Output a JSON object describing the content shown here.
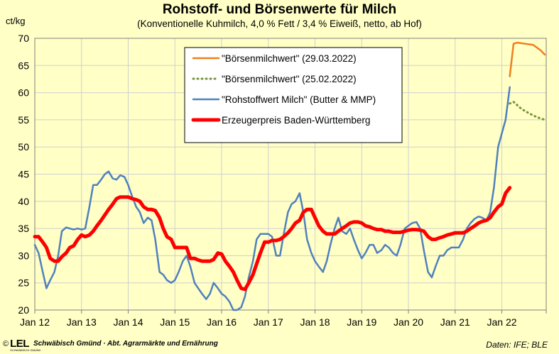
{
  "header": {
    "title": "Rohstoff- und Börsenwerte für Milch",
    "subtitle": "(Konventionelle Kuhmilch, 4,0 % Fett / 3,4 % Eiweiß, netto, ab Hof)",
    "unit": "ct/kg"
  },
  "footer": {
    "copyright": "©",
    "logo": "LEL",
    "logo_sub": "SCHWÄBISCH GMÜND",
    "org": "Schwäbisch Gmünd · Abt. Agrarmärkte und Ernährung",
    "source": "Daten: IFE; BLE"
  },
  "colors": {
    "background": "#ffffc6",
    "orange": "#f07f1e",
    "green": "#77933c",
    "blue": "#4f81bd",
    "red": "#ff0000",
    "grid": "#d0d0d0"
  },
  "chart_data": {
    "type": "line",
    "ylim": [
      20,
      70
    ],
    "yticks": [
      20,
      25,
      30,
      35,
      40,
      45,
      50,
      55,
      60,
      65,
      70
    ],
    "xlim": [
      2012.0,
      2022.95
    ],
    "xticks": [
      {
        "value": 2012,
        "label": "Jan 12"
      },
      {
        "value": 2013,
        "label": "Jan 13"
      },
      {
        "value": 2014,
        "label": "Jan 14"
      },
      {
        "value": 2015,
        "label": "Jan 15"
      },
      {
        "value": 2016,
        "label": "Jan 16"
      },
      {
        "value": 2017,
        "label": "Jan 17"
      },
      {
        "value": 2018,
        "label": "Jan 18"
      },
      {
        "value": 2019,
        "label": "Jan 19"
      },
      {
        "value": 2020,
        "label": "Jan 20"
      },
      {
        "value": 2021,
        "label": "Jan 21"
      },
      {
        "value": 2022,
        "label": "Jan 22"
      }
    ],
    "legend_position": "top-center",
    "series": [
      {
        "name": "\"Börsenmilchwert\" (29.03.2022)",
        "color": "#f07f1e",
        "style": "solid",
        "width": 2.5,
        "points": [
          [
            2022.17,
            63.0
          ],
          [
            2022.25,
            69.0
          ],
          [
            2022.33,
            69.2
          ],
          [
            2022.5,
            69.0
          ],
          [
            2022.67,
            68.8
          ],
          [
            2022.83,
            67.8
          ],
          [
            2022.92,
            67.0
          ]
        ]
      },
      {
        "name": "\"Börsenmilchwert\" (25.02.2022)",
        "color": "#77933c",
        "style": "dotted",
        "width": 2.5,
        "points": [
          [
            2022.17,
            58.0
          ],
          [
            2022.25,
            58.3
          ],
          [
            2022.42,
            57.0
          ],
          [
            2022.58,
            56.2
          ],
          [
            2022.75,
            55.5
          ],
          [
            2022.92,
            55.0
          ]
        ]
      },
      {
        "name": "\"Rohstoffwert Milch\" (Butter & MMP)",
        "color": "#4f81bd",
        "style": "solid",
        "width": 2.5,
        "points": [
          [
            2012.0,
            32.0
          ],
          [
            2012.08,
            30.5
          ],
          [
            2012.17,
            27.0
          ],
          [
            2012.25,
            24.0
          ],
          [
            2012.33,
            25.5
          ],
          [
            2012.42,
            27.0
          ],
          [
            2012.5,
            30.0
          ],
          [
            2012.58,
            34.5
          ],
          [
            2012.67,
            35.2
          ],
          [
            2012.75,
            35.0
          ],
          [
            2012.83,
            34.8
          ],
          [
            2012.92,
            35.0
          ],
          [
            2013.0,
            34.8
          ],
          [
            2013.08,
            35.0
          ],
          [
            2013.17,
            39.0
          ],
          [
            2013.25,
            43.0
          ],
          [
            2013.33,
            43.0
          ],
          [
            2013.42,
            44.0
          ],
          [
            2013.5,
            45.0
          ],
          [
            2013.58,
            45.5
          ],
          [
            2013.67,
            44.2
          ],
          [
            2013.75,
            44.0
          ],
          [
            2013.83,
            44.8
          ],
          [
            2013.92,
            44.5
          ],
          [
            2014.0,
            43.0
          ],
          [
            2014.08,
            41.0
          ],
          [
            2014.17,
            39.0
          ],
          [
            2014.25,
            38.0
          ],
          [
            2014.33,
            36.0
          ],
          [
            2014.42,
            37.0
          ],
          [
            2014.5,
            36.5
          ],
          [
            2014.58,
            33.0
          ],
          [
            2014.67,
            27.0
          ],
          [
            2014.75,
            26.5
          ],
          [
            2014.83,
            25.5
          ],
          [
            2014.92,
            25.0
          ],
          [
            2015.0,
            25.5
          ],
          [
            2015.08,
            27.0
          ],
          [
            2015.17,
            29.0
          ],
          [
            2015.25,
            30.0
          ],
          [
            2015.33,
            28.0
          ],
          [
            2015.42,
            25.0
          ],
          [
            2015.5,
            24.0
          ],
          [
            2015.58,
            23.0
          ],
          [
            2015.67,
            22.0
          ],
          [
            2015.75,
            23.0
          ],
          [
            2015.83,
            25.0
          ],
          [
            2015.92,
            24.0
          ],
          [
            2016.0,
            23.0
          ],
          [
            2016.08,
            22.5
          ],
          [
            2016.17,
            21.5
          ],
          [
            2016.25,
            20.0
          ],
          [
            2016.33,
            20.0
          ],
          [
            2016.42,
            20.5
          ],
          [
            2016.5,
            22.5
          ],
          [
            2016.58,
            26.0
          ],
          [
            2016.67,
            29.0
          ],
          [
            2016.75,
            33.0
          ],
          [
            2016.83,
            34.0
          ],
          [
            2016.92,
            34.0
          ],
          [
            2017.0,
            34.0
          ],
          [
            2017.08,
            33.5
          ],
          [
            2017.17,
            30.0
          ],
          [
            2017.25,
            30.0
          ],
          [
            2017.33,
            34.0
          ],
          [
            2017.42,
            38.0
          ],
          [
            2017.5,
            39.5
          ],
          [
            2017.58,
            40.0
          ],
          [
            2017.67,
            41.5
          ],
          [
            2017.75,
            38.0
          ],
          [
            2017.83,
            33.0
          ],
          [
            2017.92,
            30.5
          ],
          [
            2018.0,
            29.0
          ],
          [
            2018.08,
            28.0
          ],
          [
            2018.17,
            27.0
          ],
          [
            2018.25,
            29.0
          ],
          [
            2018.33,
            32.0
          ],
          [
            2018.42,
            35.0
          ],
          [
            2018.5,
            37.0
          ],
          [
            2018.58,
            34.5
          ],
          [
            2018.67,
            34.0
          ],
          [
            2018.75,
            35.0
          ],
          [
            2018.83,
            33.0
          ],
          [
            2018.92,
            31.0
          ],
          [
            2019.0,
            29.5
          ],
          [
            2019.08,
            30.5
          ],
          [
            2019.17,
            32.0
          ],
          [
            2019.25,
            32.0
          ],
          [
            2019.33,
            30.5
          ],
          [
            2019.42,
            31.0
          ],
          [
            2019.5,
            32.0
          ],
          [
            2019.58,
            31.5
          ],
          [
            2019.67,
            30.5
          ],
          [
            2019.75,
            30.0
          ],
          [
            2019.83,
            32.0
          ],
          [
            2019.92,
            35.0
          ],
          [
            2020.0,
            35.5
          ],
          [
            2020.08,
            36.0
          ],
          [
            2020.17,
            36.2
          ],
          [
            2020.25,
            35.0
          ],
          [
            2020.33,
            31.0
          ],
          [
            2020.42,
            27.0
          ],
          [
            2020.5,
            26.0
          ],
          [
            2020.58,
            28.0
          ],
          [
            2020.67,
            30.0
          ],
          [
            2020.75,
            30.0
          ],
          [
            2020.83,
            31.0
          ],
          [
            2020.92,
            31.5
          ],
          [
            2021.0,
            31.5
          ],
          [
            2021.08,
            31.5
          ],
          [
            2021.17,
            33.0
          ],
          [
            2021.25,
            35.0
          ],
          [
            2021.33,
            36.0
          ],
          [
            2021.42,
            36.8
          ],
          [
            2021.5,
            37.2
          ],
          [
            2021.58,
            37.0
          ],
          [
            2021.67,
            36.5
          ],
          [
            2021.75,
            38.0
          ],
          [
            2021.83,
            42.5
          ],
          [
            2021.92,
            50.0
          ],
          [
            2022.0,
            52.5
          ],
          [
            2022.08,
            55.0
          ],
          [
            2022.17,
            61.0
          ]
        ]
      },
      {
        "name": "Erzeugerpreis Baden-Württemberg",
        "color": "#ff0000",
        "style": "solid",
        "width": 5,
        "points": [
          [
            2012.0,
            33.5
          ],
          [
            2012.08,
            33.5
          ],
          [
            2012.17,
            32.5
          ],
          [
            2012.25,
            31.5
          ],
          [
            2012.33,
            29.5
          ],
          [
            2012.42,
            29.0
          ],
          [
            2012.5,
            29.0
          ],
          [
            2012.58,
            29.8
          ],
          [
            2012.67,
            30.5
          ],
          [
            2012.75,
            31.5
          ],
          [
            2012.83,
            31.8
          ],
          [
            2012.92,
            33.0
          ],
          [
            2013.0,
            33.8
          ],
          [
            2013.08,
            33.5
          ],
          [
            2013.17,
            33.8
          ],
          [
            2013.25,
            34.5
          ],
          [
            2013.33,
            35.5
          ],
          [
            2013.42,
            36.5
          ],
          [
            2013.5,
            37.5
          ],
          [
            2013.58,
            38.5
          ],
          [
            2013.67,
            39.5
          ],
          [
            2013.75,
            40.5
          ],
          [
            2013.83,
            40.8
          ],
          [
            2013.92,
            40.8
          ],
          [
            2014.0,
            40.8
          ],
          [
            2014.08,
            40.5
          ],
          [
            2014.17,
            40.3
          ],
          [
            2014.25,
            40.0
          ],
          [
            2014.33,
            39.0
          ],
          [
            2014.42,
            38.5
          ],
          [
            2014.5,
            38.5
          ],
          [
            2014.58,
            38.3
          ],
          [
            2014.67,
            37.0
          ],
          [
            2014.75,
            35.0
          ],
          [
            2014.83,
            33.5
          ],
          [
            2014.92,
            33.0
          ],
          [
            2015.0,
            31.5
          ],
          [
            2015.08,
            31.5
          ],
          [
            2015.17,
            31.5
          ],
          [
            2015.25,
            31.5
          ],
          [
            2015.33,
            29.5
          ],
          [
            2015.42,
            29.5
          ],
          [
            2015.5,
            29.2
          ],
          [
            2015.58,
            29.0
          ],
          [
            2015.67,
            29.0
          ],
          [
            2015.75,
            29.0
          ],
          [
            2015.83,
            29.3
          ],
          [
            2015.92,
            30.5
          ],
          [
            2016.0,
            30.3
          ],
          [
            2016.08,
            29.0
          ],
          [
            2016.17,
            28.0
          ],
          [
            2016.25,
            27.0
          ],
          [
            2016.33,
            25.5
          ],
          [
            2016.42,
            24.0
          ],
          [
            2016.5,
            23.8
          ],
          [
            2016.58,
            25.0
          ],
          [
            2016.67,
            26.5
          ],
          [
            2016.75,
            28.5
          ],
          [
            2016.83,
            30.5
          ],
          [
            2016.92,
            32.5
          ],
          [
            2017.0,
            32.5
          ],
          [
            2017.08,
            32.8
          ],
          [
            2017.17,
            32.8
          ],
          [
            2017.25,
            33.0
          ],
          [
            2017.33,
            33.5
          ],
          [
            2017.42,
            34.2
          ],
          [
            2017.5,
            35.0
          ],
          [
            2017.58,
            36.0
          ],
          [
            2017.67,
            36.5
          ],
          [
            2017.75,
            38.0
          ],
          [
            2017.83,
            38.5
          ],
          [
            2017.92,
            38.5
          ],
          [
            2018.0,
            37.0
          ],
          [
            2018.08,
            35.5
          ],
          [
            2018.17,
            34.5
          ],
          [
            2018.25,
            34.0
          ],
          [
            2018.33,
            34.0
          ],
          [
            2018.42,
            34.0
          ],
          [
            2018.5,
            34.5
          ],
          [
            2018.58,
            35.0
          ],
          [
            2018.67,
            35.5
          ],
          [
            2018.75,
            36.0
          ],
          [
            2018.83,
            36.2
          ],
          [
            2018.92,
            36.2
          ],
          [
            2019.0,
            36.0
          ],
          [
            2019.08,
            35.5
          ],
          [
            2019.17,
            35.3
          ],
          [
            2019.25,
            35.0
          ],
          [
            2019.33,
            34.8
          ],
          [
            2019.42,
            34.8
          ],
          [
            2019.5,
            34.5
          ],
          [
            2019.58,
            34.5
          ],
          [
            2019.67,
            34.3
          ],
          [
            2019.75,
            34.3
          ],
          [
            2019.83,
            34.3
          ],
          [
            2019.92,
            34.5
          ],
          [
            2020.0,
            34.7
          ],
          [
            2020.08,
            34.8
          ],
          [
            2020.17,
            34.8
          ],
          [
            2020.25,
            34.7
          ],
          [
            2020.33,
            34.5
          ],
          [
            2020.42,
            33.5
          ],
          [
            2020.5,
            33.0
          ],
          [
            2020.58,
            33.0
          ],
          [
            2020.67,
            33.3
          ],
          [
            2020.75,
            33.5
          ],
          [
            2020.83,
            33.8
          ],
          [
            2020.92,
            34.0
          ],
          [
            2021.0,
            34.2
          ],
          [
            2021.08,
            34.2
          ],
          [
            2021.17,
            34.2
          ],
          [
            2021.25,
            34.5
          ],
          [
            2021.33,
            35.0
          ],
          [
            2021.42,
            35.5
          ],
          [
            2021.5,
            36.0
          ],
          [
            2021.58,
            36.3
          ],
          [
            2021.67,
            36.5
          ],
          [
            2021.75,
            37.0
          ],
          [
            2021.83,
            38.0
          ],
          [
            2021.92,
            39.0
          ],
          [
            2022.0,
            39.5
          ],
          [
            2022.08,
            41.5
          ],
          [
            2022.17,
            42.5
          ]
        ]
      }
    ]
  }
}
